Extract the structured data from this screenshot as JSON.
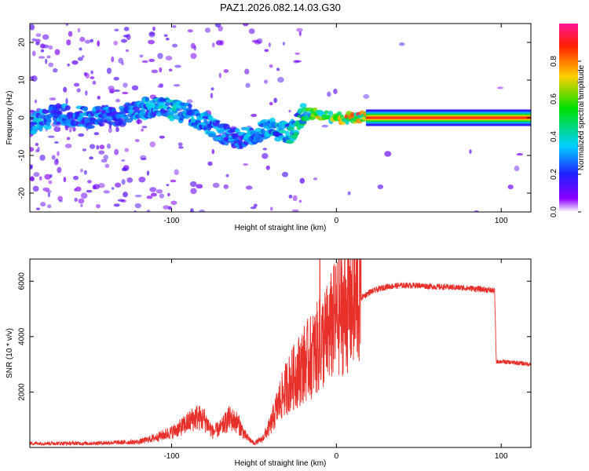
{
  "title": "PAZ1.2026.082.14.03.G30",
  "colors": {
    "snr_line": "#e8302a",
    "axis": "#000000",
    "spectrogram_background": "#ffffff"
  },
  "chart_data": [
    {
      "type": "heatmap",
      "name": "spectrogram",
      "xlabel": "Height of straight line (km)",
      "ylabel": "Frequency (Hz)",
      "xlim": [
        -186,
        118
      ],
      "ylim": [
        -25,
        25
      ],
      "x_ticks": [
        -100,
        0,
        100
      ],
      "y_ticks": [
        -20,
        -10,
        0,
        10,
        20
      ],
      "colorbar": {
        "label": "Normalized spectral amplitude",
        "range": [
          0.0,
          1.0
        ],
        "ticks": [
          0.0,
          0.2,
          0.4,
          0.6,
          0.8
        ],
        "stops": [
          "#ffffff",
          "#8b00ff",
          "#2020ff",
          "#00d0ff",
          "#00e000",
          "#ffd000",
          "#ff2000",
          "#ff1493"
        ]
      },
      "ridge": {
        "description_free_points": [
          {
            "x": -186,
            "y": -2,
            "amp": 0.35
          },
          {
            "x": -170,
            "y": 1,
            "amp": 0.3
          },
          {
            "x": -150,
            "y": 0,
            "amp": 0.3
          },
          {
            "x": -130,
            "y": 1,
            "amp": 0.3
          },
          {
            "x": -110,
            "y": 3,
            "amp": 0.35
          },
          {
            "x": -100,
            "y": 2,
            "amp": 0.4
          },
          {
            "x": -90,
            "y": 1,
            "amp": 0.35
          },
          {
            "x": -80,
            "y": -1,
            "amp": 0.35
          },
          {
            "x": -70,
            "y": -4,
            "amp": 0.3
          },
          {
            "x": -60,
            "y": -6,
            "amp": 0.3
          },
          {
            "x": -50,
            "y": -4,
            "amp": 0.35
          },
          {
            "x": -40,
            "y": -3,
            "amp": 0.35
          },
          {
            "x": -28,
            "y": -4,
            "amp": 0.4
          },
          {
            "x": -20,
            "y": 1,
            "amp": 0.5
          },
          {
            "x": -10,
            "y": 1,
            "amp": 0.7
          },
          {
            "x": 0,
            "y": 0,
            "amp": 0.75
          },
          {
            "x": 10,
            "y": 0,
            "amp": 0.8
          },
          {
            "x": 20,
            "y": 0,
            "amp": 0.85
          },
          {
            "x": 118,
            "y": 0,
            "amp": 0.85
          }
        ]
      }
    },
    {
      "type": "line",
      "name": "snr",
      "xlabel": "Height of straight line (km)",
      "ylabel": "SNR (10 * v/v)",
      "xlim": [
        -186,
        118
      ],
      "ylim": [
        0,
        6800
      ],
      "x_ticks": [
        -100,
        0,
        100
      ],
      "y_ticks": [
        2000,
        4000,
        6000
      ],
      "series": [
        {
          "name": "SNR",
          "x": [
            -186,
            -150,
            -120,
            -110,
            -100,
            -95,
            -90,
            -85,
            -80,
            -75,
            -70,
            -65,
            -60,
            -55,
            -50,
            -45,
            -40,
            -35,
            -30,
            -25,
            -20,
            -15,
            -10,
            -5,
            0,
            10,
            20,
            30,
            40,
            50,
            60,
            70,
            80,
            90,
            96,
            97,
            100,
            110,
            118
          ],
          "values": [
            150,
            150,
            200,
            350,
            550,
            700,
            900,
            1100,
            1000,
            550,
            700,
            1050,
            900,
            400,
            150,
            300,
            800,
            1600,
            2200,
            2600,
            3000,
            3300,
            3700,
            4100,
            4700,
            5200,
            5600,
            5800,
            5850,
            5850,
            5800,
            5780,
            5750,
            5700,
            5650,
            3100,
            3100,
            3050,
            3000
          ]
        }
      ]
    }
  ]
}
